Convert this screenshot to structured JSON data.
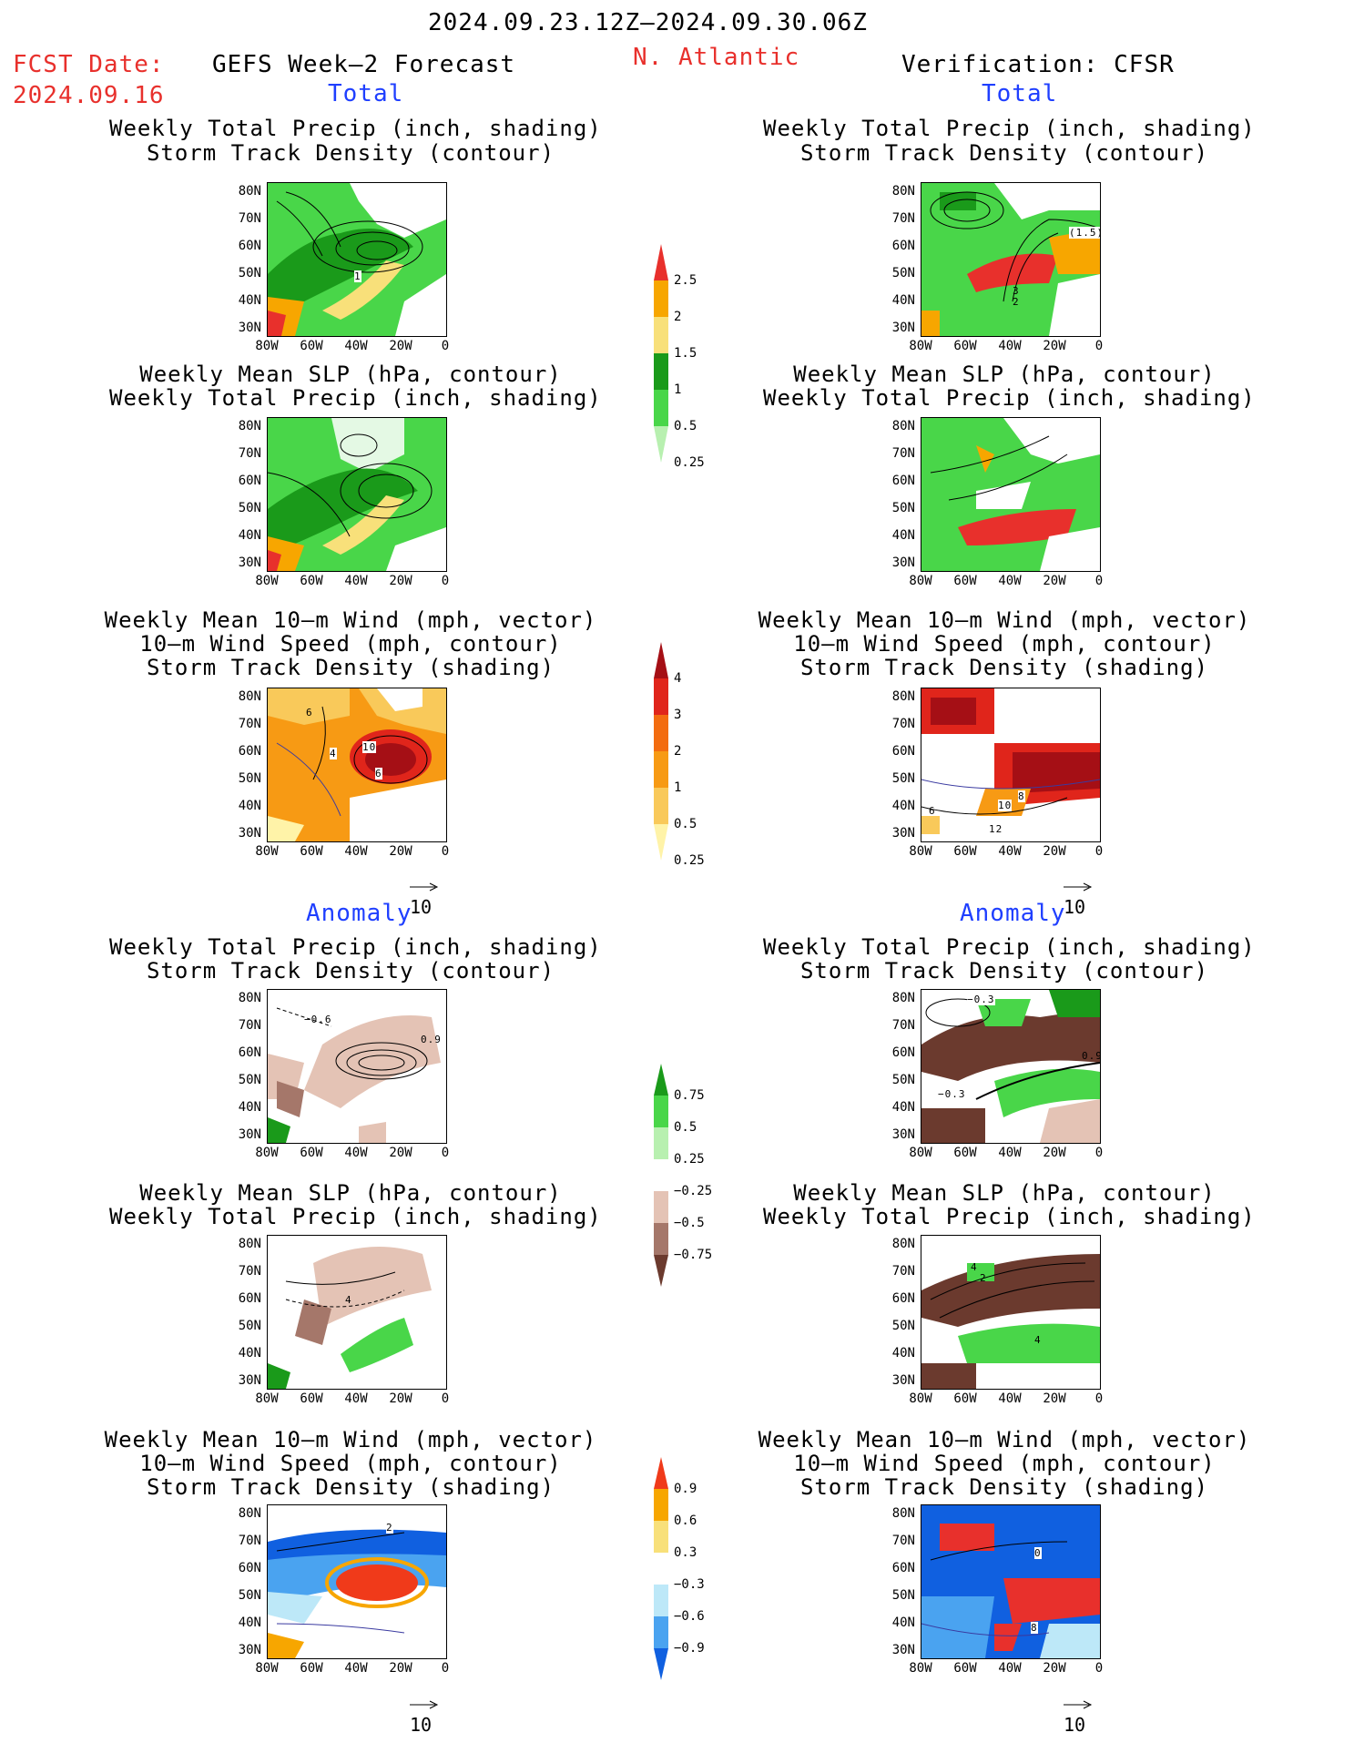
{
  "header": {
    "period": "2024.09.23.12Z–2024.09.30.06Z",
    "fcst_label": "FCST Date:",
    "fcst_date": "2024.09.16",
    "left_title": "GEFS Week–2 Forecast",
    "region": "N. Atlantic",
    "right_title": "Verification: CFSR"
  },
  "sections": {
    "total": "Total",
    "anomaly": "Anomaly"
  },
  "panel_titles": {
    "precip_track": [
      "Weekly Total Precip (inch, shading)",
      "Storm Track Density (contour)"
    ],
    "slp_precip": [
      "Weekly Mean SLP (hPa, contour)",
      "Weekly Total Precip (inch, shading)"
    ],
    "wind_track": [
      "Weekly Mean 10–m Wind (mph, vector)",
      "10–m Wind Speed (mph, contour)",
      "Storm Track Density (shading)"
    ]
  },
  "axes": {
    "lat_ticks": [
      "80N",
      "70N",
      "60N",
      "50N",
      "40N",
      "30N"
    ],
    "lon_ticks": [
      "80W",
      "60W",
      "40W",
      "20W",
      "0"
    ]
  },
  "vector_ref": "10",
  "colorbars": {
    "precip_total": {
      "labels": [
        "2.5",
        "2",
        "1.5",
        "1",
        "0.5",
        "0.25"
      ],
      "colors": [
        "#e8302c",
        "#f7a600",
        "#f8e07a",
        "#1a9a1a",
        "#49d649",
        "#b8f0b0"
      ]
    },
    "track_total": {
      "labels": [
        "4",
        "3",
        "2",
        "1",
        "0.5",
        "0.25"
      ],
      "colors": [
        "#a50f15",
        "#e0251b",
        "#f36c10",
        "#f79a14",
        "#f9c95a",
        "#fff3a8"
      ]
    },
    "precip_anom": {
      "labels": [
        "0.75",
        "0.5",
        "0.25",
        "−0.25",
        "−0.5",
        "−0.75"
      ],
      "colors": [
        "#1a9a1a",
        "#49d649",
        "#b8f0b0",
        "#ffffff",
        "#e4c3b5",
        "#a5776a",
        "#6b3a2e"
      ]
    },
    "track_anom": {
      "labels": [
        "0.9",
        "0.6",
        "0.3",
        "−0.3",
        "−0.6",
        "−0.9"
      ],
      "colors": [
        "#f03a1a",
        "#f7a600",
        "#f8e07a",
        "#ffffff",
        "#bde8f8",
        "#4aa3f0",
        "#1060e0"
      ]
    }
  },
  "contour_labels": {
    "fc_total_1": "1",
    "fc_total_wind": [
      "6",
      "4",
      "10",
      "6"
    ],
    "ver_total_1": [
      "(1.5)",
      "3",
      "2"
    ],
    "ver_total_wind": [
      "10",
      "8",
      "6",
      "12"
    ],
    "fc_anom_1": [
      "−0.6",
      "0.9"
    ],
    "fc_anom_2": "4",
    "ver_anom_1": [
      "−0.3",
      "−0.3",
      "0.9"
    ],
    "ver_anom_2": [
      "4",
      "2",
      "4"
    ],
    "fc_anom_wind": "2",
    "ver_anom_wind": [
      "0",
      "8"
    ]
  }
}
